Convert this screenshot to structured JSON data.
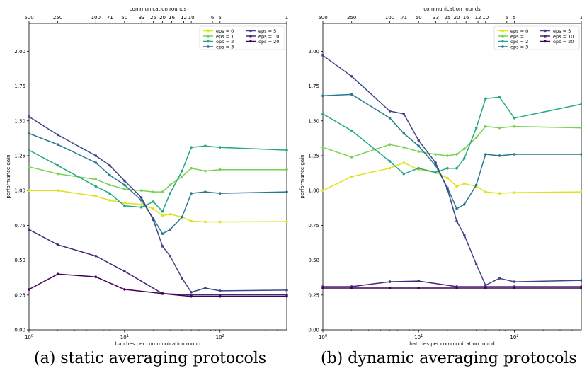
{
  "captions": {
    "a": "(a) static averaging protocols",
    "b": "(b) dynamic averaging protocols"
  },
  "chart_data": [
    {
      "type": "line",
      "xscale": "log",
      "xlabel": "batches per communication round",
      "ylabel": "performance gain",
      "top_xlabel": "communication rounds",
      "xlim": [
        1,
        500
      ],
      "ylim": [
        0,
        2.2
      ],
      "xticks": [
        {
          "value": 1,
          "label": "10^0"
        },
        {
          "value": 10,
          "label": "10^1"
        },
        {
          "value": 100,
          "label": "10^2"
        }
      ],
      "yticks": [
        "0.00",
        "0.25",
        "0.50",
        "0.75",
        "1.00",
        "1.25",
        "1.50",
        "1.75",
        "2.00"
      ],
      "top_ticks": [
        "500",
        "250",
        "100",
        "71",
        "50",
        "33",
        "25",
        "20",
        "16",
        "12",
        "10",
        "6",
        "5",
        "1"
      ],
      "legend_position": "upper right",
      "grid": false,
      "series": [
        {
          "name": "eps = 0",
          "color": "#dde318",
          "x": [
            1,
            2,
            5,
            7,
            10,
            15,
            20,
            25,
            30,
            40,
            50,
            70,
            100,
            500
          ],
          "y": [
            1.0,
            1.0,
            0.96,
            0.93,
            0.91,
            0.9,
            0.87,
            0.82,
            0.83,
            0.81,
            0.78,
            0.775,
            0.775,
            0.777
          ]
        },
        {
          "name": "eps = 1",
          "color": "#7ad151",
          "x": [
            1,
            2,
            5,
            7,
            10,
            15,
            20,
            25,
            30,
            40,
            50,
            70,
            100,
            500
          ],
          "y": [
            1.17,
            1.12,
            1.08,
            1.04,
            1.01,
            1.0,
            0.99,
            0.99,
            1.04,
            1.1,
            1.16,
            1.14,
            1.15,
            1.15
          ]
        },
        {
          "name": "eps = 2",
          "color": "#22a884",
          "x": [
            1,
            2,
            5,
            7,
            10,
            15,
            20,
            25,
            30,
            40,
            50,
            70,
            100,
            500
          ],
          "y": [
            1.29,
            1.18,
            1.03,
            0.98,
            0.89,
            0.88,
            0.92,
            0.85,
            0.98,
            1.14,
            1.31,
            1.32,
            1.31,
            1.29
          ]
        },
        {
          "name": "eps = 3",
          "color": "#2a788e",
          "x": [
            1,
            2,
            5,
            7,
            10,
            15,
            20,
            25,
            30,
            40,
            50,
            70,
            100,
            500
          ],
          "y": [
            1.41,
            1.33,
            1.2,
            1.11,
            1.04,
            0.93,
            0.8,
            0.69,
            0.72,
            0.81,
            0.98,
            0.99,
            0.98,
            0.99
          ]
        },
        {
          "name": "eps = 5",
          "color": "#414487",
          "x": [
            1,
            2,
            5,
            7,
            10,
            15,
            20,
            25,
            30,
            40,
            50,
            70,
            100,
            500
          ],
          "y": [
            1.53,
            1.4,
            1.25,
            1.18,
            1.07,
            0.95,
            0.79,
            0.6,
            0.53,
            0.37,
            0.27,
            0.3,
            0.28,
            0.285
          ]
        },
        {
          "name": "eps = 10",
          "color": "#482878",
          "x": [
            1,
            2,
            5,
            10,
            25,
            50,
            100,
            500
          ],
          "y": [
            0.72,
            0.61,
            0.53,
            0.42,
            0.26,
            0.25,
            0.25,
            0.25
          ]
        },
        {
          "name": "eps = 20",
          "color": "#440154",
          "x": [
            1,
            2,
            5,
            10,
            25,
            50,
            100,
            500
          ],
          "y": [
            0.29,
            0.4,
            0.38,
            0.29,
            0.26,
            0.24,
            0.24,
            0.24
          ]
        }
      ]
    },
    {
      "type": "line",
      "xscale": "log",
      "xlabel": "batches per communication round",
      "ylabel": "performance gain",
      "top_xlabel": "communication rounds",
      "xlim": [
        1,
        500
      ],
      "ylim": [
        0,
        2.2
      ],
      "xticks": [
        {
          "value": 1,
          "label": "10^0"
        },
        {
          "value": 10,
          "label": "10^1"
        },
        {
          "value": 100,
          "label": "10^2"
        }
      ],
      "yticks": [
        "0.00",
        "0.25",
        "0.50",
        "0.75",
        "1.00",
        "1.25",
        "1.50",
        "1.75",
        "2.00"
      ],
      "top_ticks": [
        "500",
        "250",
        "100",
        "71",
        "50",
        "33",
        "25",
        "20",
        "16",
        "12",
        "10",
        "6",
        "5",
        "1"
      ],
      "legend_position": "upper right",
      "grid": false,
      "series": [
        {
          "name": "eps = 0",
          "color": "#dde318",
          "x": [
            1,
            2,
            5,
            7,
            10,
            15,
            20,
            25,
            30,
            40,
            50,
            70,
            100,
            500
          ],
          "y": [
            1.0,
            1.1,
            1.16,
            1.2,
            1.15,
            1.13,
            1.09,
            1.03,
            1.05,
            1.03,
            0.99,
            0.98,
            0.985,
            0.99
          ]
        },
        {
          "name": "eps = 1",
          "color": "#7ad151",
          "x": [
            1,
            2,
            5,
            7,
            10,
            15,
            20,
            25,
            30,
            40,
            50,
            70,
            100,
            500
          ],
          "y": [
            1.31,
            1.24,
            1.33,
            1.31,
            1.28,
            1.26,
            1.25,
            1.26,
            1.3,
            1.38,
            1.46,
            1.45,
            1.46,
            1.45
          ]
        },
        {
          "name": "eps = 2",
          "color": "#22a884",
          "x": [
            1,
            2,
            5,
            7,
            10,
            15,
            20,
            25,
            30,
            40,
            50,
            70,
            100,
            500
          ],
          "y": [
            1.55,
            1.43,
            1.21,
            1.12,
            1.16,
            1.13,
            1.16,
            1.16,
            1.23,
            1.45,
            1.66,
            1.67,
            1.52,
            1.62
          ]
        },
        {
          "name": "eps = 3",
          "color": "#2a788e",
          "x": [
            1,
            2,
            5,
            7,
            10,
            15,
            20,
            25,
            30,
            40,
            50,
            70,
            100,
            500
          ],
          "y": [
            1.68,
            1.69,
            1.52,
            1.41,
            1.32,
            1.18,
            1.02,
            0.87,
            0.9,
            1.04,
            1.26,
            1.25,
            1.26,
            1.26
          ]
        },
        {
          "name": "eps = 5",
          "color": "#414487",
          "x": [
            1,
            2,
            5,
            7,
            10,
            15,
            20,
            25,
            30,
            40,
            50,
            70,
            100,
            500
          ],
          "y": [
            1.97,
            1.82,
            1.57,
            1.55,
            1.36,
            1.2,
            1.01,
            0.78,
            0.68,
            0.47,
            0.32,
            0.37,
            0.345,
            0.355
          ]
        },
        {
          "name": "eps = 10",
          "color": "#482878",
          "x": [
            1,
            2,
            5,
            10,
            25,
            50,
            100,
            500
          ],
          "y": [
            0.31,
            0.31,
            0.345,
            0.35,
            0.31,
            0.31,
            0.31,
            0.31
          ]
        },
        {
          "name": "eps = 20",
          "color": "#440154",
          "x": [
            1,
            2,
            5,
            10,
            25,
            50,
            100,
            500
          ],
          "y": [
            0.3,
            0.3,
            0.3,
            0.3,
            0.3,
            0.3,
            0.3,
            0.3
          ]
        }
      ]
    }
  ]
}
